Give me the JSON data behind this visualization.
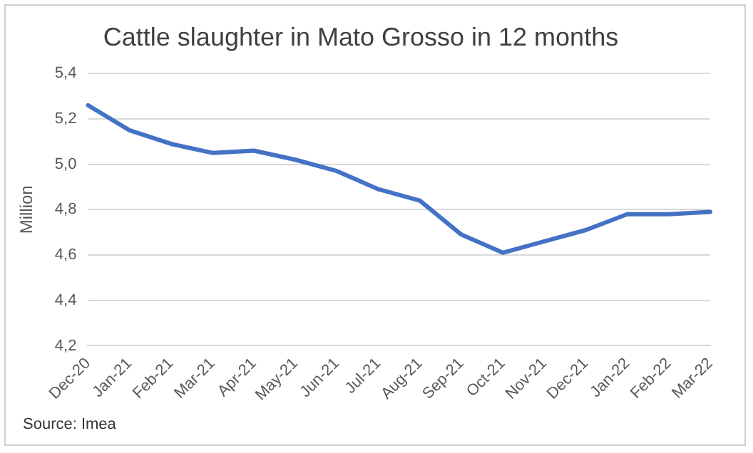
{
  "chart_data": {
    "type": "line",
    "title": "Cattle slaughter in Mato Grosso in 12 months",
    "ylabel": "Million",
    "categories": [
      "Dec-20",
      "Jan-21",
      "Feb-21",
      "Mar-21",
      "Apr-21",
      "May-21",
      "Jun-21",
      "Jul-21",
      "Aug-21",
      "Sep-21",
      "Oct-21",
      "Nov-21",
      "Dec-21",
      "Jan-22",
      "Feb-22",
      "Mar-22"
    ],
    "series": [
      {
        "color": "#4472c4",
        "values": [
          5.26,
          5.15,
          5.09,
          5.05,
          5.06,
          5.02,
          4.97,
          4.89,
          4.84,
          4.69,
          4.61,
          4.66,
          4.71,
          4.78,
          4.78,
          4.79
        ]
      }
    ],
    "ylim": [
      4.2,
      5.4
    ],
    "yticks": [
      {
        "value": 4.2,
        "label": "4,2"
      },
      {
        "value": 4.4,
        "label": "4,4"
      },
      {
        "value": 4.6,
        "label": "4,6"
      },
      {
        "value": 4.8,
        "label": "4,8"
      },
      {
        "value": 5.0,
        "label": "5,0"
      },
      {
        "value": 5.2,
        "label": "5,2"
      },
      {
        "value": 5.4,
        "label": "5,4"
      }
    ],
    "grid": "y",
    "legend": false,
    "marker": "none",
    "line_style": "solid",
    "annotations": [
      "Source: Imea"
    ]
  }
}
